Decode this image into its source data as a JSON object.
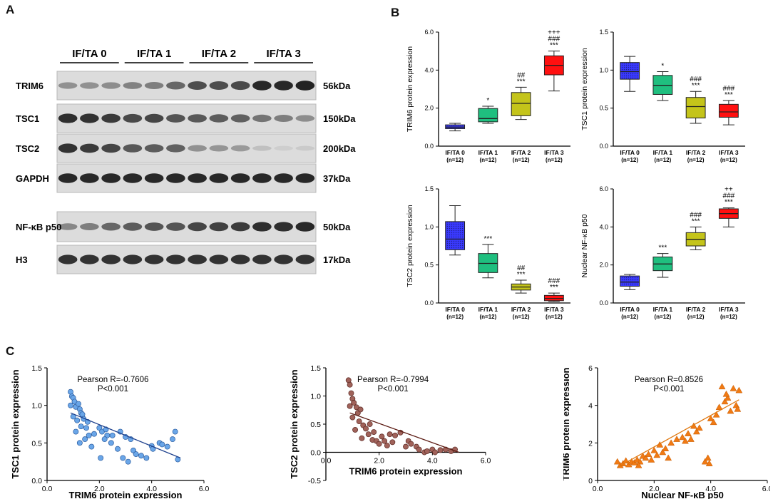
{
  "panels": {
    "a": "A",
    "b": "B",
    "c": "C"
  },
  "western_blot": {
    "groups": [
      "IF/TA 0",
      "IF/TA 1",
      "IF/TA 2",
      "IF/TA 3"
    ],
    "blocks": [
      {
        "rows": [
          {
            "protein": "TRIM6",
            "kda": "56kDa",
            "intensity": [
              0.4,
              0.4,
              0.42,
              0.48,
              0.5,
              0.62,
              0.75,
              0.75,
              0.78,
              0.95,
              0.95,
              0.98
            ]
          },
          {
            "protein": "TSC1",
            "kda": "150kDa",
            "intensity": [
              0.92,
              0.9,
              0.85,
              0.78,
              0.8,
              0.72,
              0.7,
              0.68,
              0.66,
              0.55,
              0.5,
              0.42
            ]
          },
          {
            "protein": "TSC2",
            "kda": "200kDa",
            "intensity": [
              0.9,
              0.85,
              0.8,
              0.7,
              0.68,
              0.65,
              0.4,
              0.38,
              0.35,
              0.15,
              0.08,
              0.1
            ]
          },
          {
            "protein": "GAPDH",
            "kda": "37kDa",
            "intensity": [
              0.95,
              0.95,
              0.95,
              0.95,
              0.95,
              0.95,
              0.95,
              0.95,
              0.95,
              0.95,
              0.95,
              0.95
            ]
          }
        ]
      },
      {
        "rows": [
          {
            "protein": "NF-κB p50",
            "kda": "50kDa",
            "intensity": [
              0.45,
              0.5,
              0.62,
              0.68,
              0.72,
              0.72,
              0.8,
              0.82,
              0.85,
              0.92,
              0.92,
              0.95
            ]
          },
          {
            "protein": "H3",
            "kda": "17kDa",
            "intensity": [
              0.9,
              0.9,
              0.9,
              0.9,
              0.9,
              0.9,
              0.9,
              0.9,
              0.9,
              0.9,
              0.9,
              0.9
            ]
          }
        ]
      }
    ]
  },
  "chart_data": [
    {
      "id": "b1",
      "type": "box",
      "ylabel": "TRIM6 protein expression",
      "ylim": [
        0,
        6
      ],
      "yticks": [
        0,
        2,
        4,
        6
      ],
      "ytick_labels": [
        "0.0",
        "2.0",
        "4.0",
        "6.0"
      ],
      "categories": [
        "IF/TA 0",
        "IF/TA 1",
        "IF/TA 2",
        "IF/TA 3"
      ],
      "n_labels": [
        "(n=12)",
        "(n=12)",
        "(n=12)",
        "(n=12)"
      ],
      "boxes": [
        {
          "min": 0.8,
          "q1": 0.92,
          "median": 1.0,
          "q3": 1.12,
          "max": 1.2,
          "color": "#3a3aff",
          "pattern": "dots",
          "annot": []
        },
        {
          "min": 1.2,
          "q1": 1.28,
          "median": 1.45,
          "q3": 1.98,
          "max": 2.1,
          "color": "#1fbf7f",
          "pattern": "none",
          "annot": [
            "*"
          ]
        },
        {
          "min": 1.4,
          "q1": 1.6,
          "median": 2.25,
          "q3": 2.82,
          "max": 3.1,
          "color": "#c4c41a",
          "pattern": "none",
          "annot": [
            "##",
            "***"
          ]
        },
        {
          "min": 2.9,
          "q1": 3.75,
          "median": 4.25,
          "q3": 4.75,
          "max": 5.0,
          "color": "#ff1010",
          "pattern": "none",
          "annot": [
            "+++",
            "###",
            "***"
          ]
        }
      ]
    },
    {
      "id": "b2",
      "type": "box",
      "ylabel": "TSC1 protein expression",
      "ylim": [
        0,
        1.5
      ],
      "yticks": [
        0,
        0.5,
        1,
        1.5
      ],
      "ytick_labels": [
        "0.0",
        "0.5",
        "1.0",
        "1.5"
      ],
      "categories": [
        "IF/TA 0",
        "IF/TA 1",
        "IF/TA 2",
        "IF/TA 3"
      ],
      "n_labels": [
        "(n=12)",
        "(n=12)",
        "(n=12)",
        "(n=12)"
      ],
      "boxes": [
        {
          "min": 0.72,
          "q1": 0.88,
          "median": 0.98,
          "q3": 1.1,
          "max": 1.18,
          "color": "#3a3aff",
          "pattern": "dots",
          "annot": []
        },
        {
          "min": 0.6,
          "q1": 0.68,
          "median": 0.8,
          "q3": 0.93,
          "max": 0.98,
          "color": "#1fbf7f",
          "pattern": "none",
          "annot": [
            "*"
          ]
        },
        {
          "min": 0.3,
          "q1": 0.37,
          "median": 0.52,
          "q3": 0.64,
          "max": 0.72,
          "color": "#c4c41a",
          "pattern": "none",
          "annot": [
            "###",
            "***"
          ]
        },
        {
          "min": 0.28,
          "q1": 0.38,
          "median": 0.45,
          "q3": 0.55,
          "max": 0.6,
          "color": "#ff1010",
          "pattern": "none",
          "annot": [
            "###",
            "***"
          ]
        }
      ]
    },
    {
      "id": "b3",
      "type": "box",
      "ylabel": "TSC2 protein expression",
      "ylim": [
        0,
        1.5
      ],
      "yticks": [
        0,
        0.5,
        1,
        1.5
      ],
      "ytick_labels": [
        "0.0",
        "0.5",
        "1.0",
        "1.5"
      ],
      "categories": [
        "IF/TA 0",
        "IF/TA 1",
        "IF/TA 2",
        "IF/TA 3"
      ],
      "n_labels": [
        "(n=12)",
        "(n=12)",
        "(n=12)",
        "(n=12)"
      ],
      "boxes": [
        {
          "min": 0.63,
          "q1": 0.7,
          "median": 0.84,
          "q3": 1.07,
          "max": 1.28,
          "color": "#3a3aff",
          "pattern": "dots",
          "annot": []
        },
        {
          "min": 0.33,
          "q1": 0.4,
          "median": 0.52,
          "q3": 0.65,
          "max": 0.77,
          "color": "#1fbf7f",
          "pattern": "none",
          "annot": [
            "***"
          ]
        },
        {
          "min": 0.13,
          "q1": 0.17,
          "median": 0.21,
          "q3": 0.25,
          "max": 0.3,
          "color": "#c4c41a",
          "pattern": "none",
          "annot": [
            "##",
            "***"
          ]
        },
        {
          "min": 0.02,
          "q1": 0.03,
          "median": 0.06,
          "q3": 0.1,
          "max": 0.13,
          "color": "#ff1010",
          "pattern": "none",
          "annot": [
            "###",
            "***"
          ]
        }
      ]
    },
    {
      "id": "b4",
      "type": "box",
      "ylabel": "Nuclear NF-κB p50",
      "ylim": [
        0,
        6
      ],
      "yticks": [
        0,
        2,
        4,
        6
      ],
      "ytick_labels": [
        "0.0",
        "2.0",
        "4.0",
        "6.0"
      ],
      "categories": [
        "IF/TA 0",
        "IF/TA 1",
        "IF/TA 2",
        "IF/TA 3"
      ],
      "n_labels": [
        "(n=12)",
        "(n=12)",
        "(n=12)",
        "(n=12)"
      ],
      "boxes": [
        {
          "min": 0.7,
          "q1": 0.88,
          "median": 1.1,
          "q3": 1.42,
          "max": 1.5,
          "color": "#3a3aff",
          "pattern": "dots",
          "annot": []
        },
        {
          "min": 1.35,
          "q1": 1.7,
          "median": 2.05,
          "q3": 2.42,
          "max": 2.6,
          "color": "#1fbf7f",
          "pattern": "none",
          "annot": [
            "***"
          ]
        },
        {
          "min": 2.8,
          "q1": 3.0,
          "median": 3.35,
          "q3": 3.7,
          "max": 4.0,
          "color": "#c4c41a",
          "pattern": "none",
          "annot": [
            "###",
            "***"
          ]
        },
        {
          "min": 4.0,
          "q1": 4.45,
          "median": 4.7,
          "q3": 4.95,
          "max": 5.0,
          "color": "#ff1010",
          "pattern": "none",
          "annot": [
            "++",
            "###",
            "***"
          ]
        }
      ]
    },
    {
      "id": "c1",
      "type": "scatter",
      "marker": "circle",
      "color": "#6aa6e8",
      "stroke": "#2c5c9e",
      "line_color": "#1c3f8c",
      "xlabel": "TRIM6 protein expression",
      "ylabel": "TSC1 protein expression",
      "xlim": [
        0,
        6
      ],
      "ylim": [
        0,
        1.5
      ],
      "xticks": [
        0,
        2,
        4,
        6
      ],
      "xtick_labels": [
        "0.0",
        "2.0",
        "4.0",
        "6.0"
      ],
      "yticks": [
        0,
        0.5,
        1,
        1.5
      ],
      "ytick_labels": [
        "0.0",
        "0.5",
        "1.0",
        "1.5"
      ],
      "annotation": [
        "Pearson R=-0.7606",
        "P<0.001"
      ],
      "fit": [
        [
          0.9,
          0.9
        ],
        [
          5.1,
          0.3
        ]
      ],
      "points": [
        [
          0.9,
          1.18
        ],
        [
          0.95,
          1.12
        ],
        [
          1.0,
          1.1
        ],
        [
          1.05,
          1.05
        ],
        [
          0.9,
          1.0
        ],
        [
          1.1,
          0.98
        ],
        [
          1.2,
          1.02
        ],
        [
          1.25,
          0.95
        ],
        [
          1.3,
          0.9
        ],
        [
          1.0,
          0.85
        ],
        [
          1.15,
          0.8
        ],
        [
          1.35,
          0.88
        ],
        [
          1.4,
          0.82
        ],
        [
          1.5,
          0.7
        ],
        [
          1.3,
          0.72
        ],
        [
          1.1,
          0.65
        ],
        [
          1.6,
          0.6
        ],
        [
          1.45,
          0.55
        ],
        [
          1.25,
          0.5
        ],
        [
          1.7,
          0.45
        ],
        [
          2.0,
          0.7
        ],
        [
          2.1,
          0.65
        ],
        [
          2.25,
          0.68
        ],
        [
          2.3,
          0.6
        ],
        [
          2.2,
          0.55
        ],
        [
          2.5,
          0.6
        ],
        [
          2.45,
          0.5
        ],
        [
          2.7,
          0.42
        ],
        [
          2.9,
          0.3
        ],
        [
          3.0,
          0.58
        ],
        [
          3.2,
          0.55
        ],
        [
          3.1,
          0.25
        ],
        [
          3.3,
          0.4
        ],
        [
          3.4,
          0.35
        ],
        [
          3.6,
          0.33
        ],
        [
          3.8,
          0.3
        ],
        [
          4.0,
          0.46
        ],
        [
          4.05,
          0.42
        ],
        [
          4.3,
          0.5
        ],
        [
          4.4,
          0.48
        ],
        [
          4.6,
          0.45
        ],
        [
          4.8,
          0.55
        ],
        [
          4.9,
          0.65
        ],
        [
          5.0,
          0.28
        ],
        [
          2.05,
          0.3
        ],
        [
          2.8,
          0.65
        ],
        [
          1.8,
          0.62
        ],
        [
          1.55,
          0.78
        ]
      ]
    },
    {
      "id": "c2",
      "type": "scatter",
      "marker": "circle",
      "color": "#a0625a",
      "stroke": "#5c2a24",
      "line_color": "#5c1c14",
      "xlabel": "TRIM6 protein expression",
      "ylabel": "TSC2 protein expression",
      "xlim": [
        0,
        6
      ],
      "ylim": [
        -0.5,
        1.5
      ],
      "xticks": [
        0,
        2,
        4,
        6
      ],
      "xtick_labels": [
        "0.0",
        "2.0",
        "4.0",
        "6.0"
      ],
      "yticks": [
        -0.5,
        0,
        0.5,
        1,
        1.5
      ],
      "ytick_labels": [
        "-0.5",
        "0.0",
        "0.5",
        "1.0",
        "1.5"
      ],
      "annotation": [
        "Pearson R=-0.7994",
        "P<0.001"
      ],
      "fit": [
        [
          0.9,
          0.7
        ],
        [
          5.0,
          0.0
        ]
      ],
      "points": [
        [
          0.85,
          1.28
        ],
        [
          0.9,
          1.2
        ],
        [
          0.95,
          1.05
        ],
        [
          1.0,
          0.95
        ],
        [
          0.9,
          0.82
        ],
        [
          1.05,
          0.88
        ],
        [
          1.15,
          0.8
        ],
        [
          1.2,
          0.7
        ],
        [
          1.3,
          0.76
        ],
        [
          1.0,
          0.62
        ],
        [
          1.25,
          0.55
        ],
        [
          1.4,
          0.48
        ],
        [
          1.1,
          0.4
        ],
        [
          1.5,
          0.42
        ],
        [
          1.6,
          0.32
        ],
        [
          1.35,
          0.25
        ],
        [
          1.75,
          0.22
        ],
        [
          1.9,
          0.2
        ],
        [
          2.0,
          0.15
        ],
        [
          2.2,
          0.2
        ],
        [
          2.3,
          0.12
        ],
        [
          2.5,
          0.18
        ],
        [
          2.6,
          0.3
        ],
        [
          2.8,
          0.35
        ],
        [
          3.0,
          0.1
        ],
        [
          3.1,
          0.2
        ],
        [
          3.2,
          0.15
        ],
        [
          3.4,
          0.1
        ],
        [
          3.5,
          0.05
        ],
        [
          3.7,
          0.0
        ],
        [
          3.8,
          0.02
        ],
        [
          4.0,
          0.05
        ],
        [
          4.1,
          0.0
        ],
        [
          4.3,
          0.04
        ],
        [
          4.5,
          0.05
        ],
        [
          4.7,
          0.02
        ],
        [
          4.85,
          0.05
        ],
        [
          2.4,
          0.32
        ],
        [
          1.8,
          0.36
        ],
        [
          1.65,
          0.5
        ],
        [
          2.1,
          0.28
        ]
      ]
    },
    {
      "id": "c3",
      "type": "scatter",
      "marker": "triangle",
      "color": "#f07a14",
      "stroke": "#c45a00",
      "line_color": "#e07810",
      "xlabel": "Nuclear NF-κB p50",
      "ylabel": "TRIM6 protein expression",
      "xlim": [
        0,
        6
      ],
      "ylim": [
        0,
        6
      ],
      "xticks": [
        0,
        2,
        4,
        6
      ],
      "xtick_labels": [
        "0.0",
        "2.0",
        "4.0",
        "6.0"
      ],
      "yticks": [
        0,
        2,
        4,
        6
      ],
      "ytick_labels": [
        "0",
        "2",
        "4",
        "6"
      ],
      "annotation": [
        "Pearson R=0.8526",
        "P<0.001"
      ],
      "fit": [
        [
          0.7,
          0.7
        ],
        [
          5.0,
          4.3
        ]
      ],
      "points": [
        [
          0.7,
          1.0
        ],
        [
          0.8,
          0.8
        ],
        [
          0.9,
          0.9
        ],
        [
          1.0,
          1.05
        ],
        [
          1.1,
          0.85
        ],
        [
          1.2,
          1.0
        ],
        [
          1.3,
          0.95
        ],
        [
          1.4,
          1.1
        ],
        [
          1.5,
          1.0
        ],
        [
          1.45,
          0.8
        ],
        [
          1.6,
          1.3
        ],
        [
          1.7,
          1.2
        ],
        [
          1.8,
          1.4
        ],
        [
          1.9,
          1.1
        ],
        [
          2.0,
          1.6
        ],
        [
          2.1,
          1.35
        ],
        [
          2.2,
          1.9
        ],
        [
          2.3,
          1.5
        ],
        [
          2.4,
          1.7
        ],
        [
          2.5,
          1.2
        ],
        [
          2.6,
          2.0
        ],
        [
          2.8,
          2.2
        ],
        [
          3.0,
          2.3
        ],
        [
          3.1,
          2.1
        ],
        [
          3.2,
          2.5
        ],
        [
          3.3,
          2.2
        ],
        [
          3.4,
          2.9
        ],
        [
          3.5,
          2.6
        ],
        [
          3.6,
          2.8
        ],
        [
          3.8,
          1.0
        ],
        [
          3.9,
          1.2
        ],
        [
          3.95,
          0.9
        ],
        [
          4.0,
          3.3
        ],
        [
          4.1,
          3.1
        ],
        [
          4.2,
          3.5
        ],
        [
          4.3,
          3.9
        ],
        [
          4.4,
          5.0
        ],
        [
          4.5,
          4.2
        ],
        [
          4.6,
          4.4
        ],
        [
          4.7,
          3.7
        ],
        [
          4.8,
          4.9
        ],
        [
          4.9,
          4.0
        ],
        [
          5.0,
          4.8
        ],
        [
          4.95,
          3.8
        ],
        [
          4.55,
          4.6
        ]
      ]
    }
  ]
}
